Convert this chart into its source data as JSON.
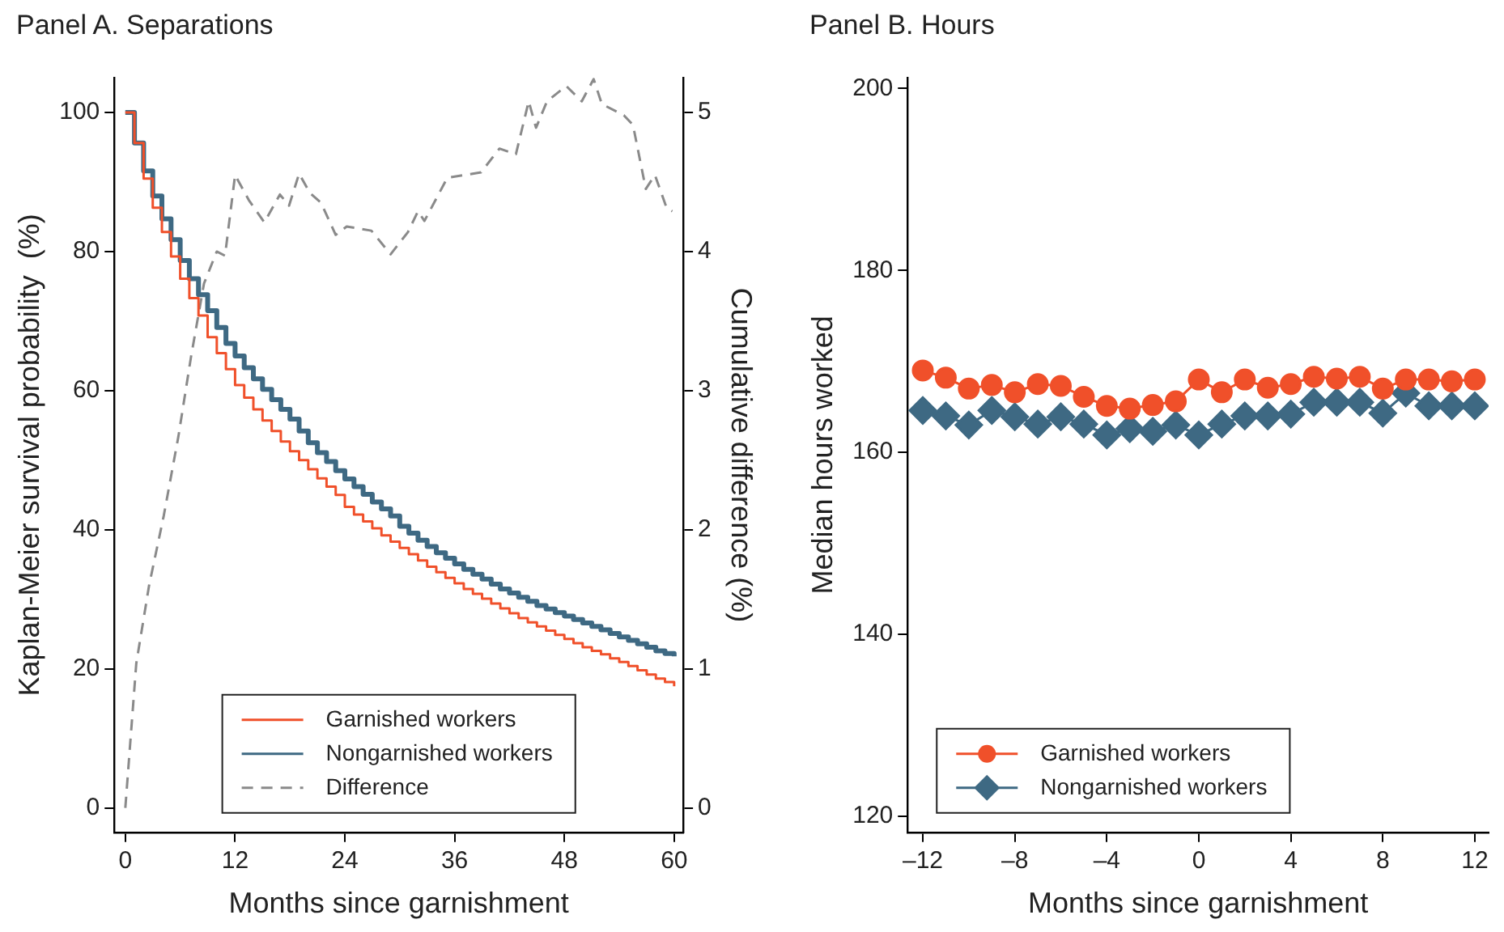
{
  "chart_data": [
    {
      "type": "step",
      "title": "Panel A. Separations",
      "xlabel": "Months since garnishment",
      "ylabel": "Kaplan-Meier survival probability  (%)",
      "y2label": "Cumulative difference (%)",
      "x": [
        0,
        1,
        2,
        3,
        4,
        5,
        6,
        7,
        8,
        9,
        10,
        11,
        12,
        13,
        14,
        15,
        16,
        17,
        18,
        19,
        20,
        21,
        22,
        23,
        24,
        25,
        26,
        27,
        28,
        29,
        30,
        31,
        32,
        33,
        34,
        35,
        36,
        37,
        38,
        39,
        40,
        41,
        42,
        43,
        44,
        45,
        46,
        47,
        48,
        49,
        50,
        51,
        52,
        53,
        54,
        55,
        56,
        57,
        58,
        59,
        60
      ],
      "xlim": [
        -1.2,
        61
      ],
      "xticks": [
        0,
        12,
        24,
        36,
        48,
        60
      ],
      "ylim": [
        -3.5,
        105
      ],
      "yticks": [
        0,
        20,
        40,
        60,
        80,
        100
      ],
      "y2lim": [
        -0.175,
        5.25
      ],
      "y2ticks": [
        0,
        1,
        2,
        3,
        4,
        5
      ],
      "legend": "bottom",
      "series": [
        {
          "name": "Garnished workers",
          "color": "#f0502a",
          "values": [
            100,
            95.6,
            90.5,
            86.3,
            82.8,
            79.3,
            76.1,
            73.3,
            70.8,
            67.7,
            65.4,
            63.1,
            60.8,
            59,
            57.3,
            55.7,
            54.2,
            52.7,
            51.3,
            50,
            48.7,
            47.4,
            46.2,
            45,
            43.3,
            42.2,
            41.2,
            40.2,
            39.2,
            38.3,
            37.4,
            36.5,
            35.6,
            34.7,
            33.9,
            33.1,
            32.3,
            31.5,
            30.8,
            30.1,
            29.4,
            28.7,
            28,
            27.3,
            26.7,
            26.1,
            25.5,
            24.9,
            24.3,
            23.7,
            23.1,
            22.6,
            22.1,
            21.5,
            21,
            20.4,
            19.8,
            19.2,
            18.6,
            18.1,
            17.5
          ]
        },
        {
          "name": "Nongarnished workers",
          "color": "#3e6983",
          "values": [
            100,
            95.6,
            91.6,
            88,
            84.7,
            81.7,
            78.7,
            76.1,
            73.8,
            71.5,
            69.1,
            66.8,
            65,
            63.3,
            61.7,
            60.2,
            58.7,
            57.3,
            55.9,
            54.2,
            52.5,
            51.1,
            49.8,
            48.5,
            47.3,
            46.2,
            45.1,
            44,
            43,
            42,
            40.5,
            39.5,
            38.5,
            37.6,
            36.7,
            35.9,
            35.1,
            34.3,
            33.6,
            32.9,
            32.2,
            31.5,
            30.9,
            30.3,
            29.7,
            29.1,
            28.6,
            28.1,
            27.6,
            27.1,
            26.6,
            26.1,
            25.6,
            25.1,
            24.6,
            24.1,
            23.6,
            23.1,
            22.6,
            22.2,
            21.8
          ]
        },
        {
          "name": "Difference",
          "type": "line",
          "axis": "y2",
          "line_style": "dashed",
          "color": "#8a8a8a",
          "x": [
            0,
            1.2,
            2.6,
            4.2,
            5.8,
            7.2,
            8.6,
            10,
            10.9,
            12,
            13.5,
            15.2,
            16.9,
            17.9,
            19,
            20.2,
            21.4,
            23,
            24.2,
            26.9,
            29,
            30.9,
            32,
            32.7,
            35.2,
            38.9,
            40.9,
            42.7,
            44.1,
            44.9,
            46.1,
            48.2,
            49.9,
            51.2,
            52.1,
            54.5,
            55.5,
            56.9,
            57.9,
            59.2,
            59.8
          ],
          "values": [
            0,
            1.04,
            1.6,
            2.1,
            2.67,
            3.25,
            3.77,
            4,
            3.97,
            4.55,
            4.37,
            4.21,
            4.41,
            4.33,
            4.56,
            4.42,
            4.35,
            4.12,
            4.18,
            4.15,
            3.98,
            4.14,
            4.29,
            4.22,
            4.53,
            4.57,
            4.74,
            4.7,
            5.08,
            4.89,
            5.08,
            5.19,
            5.08,
            5.24,
            5.06,
            4.98,
            4.91,
            4.45,
            4.55,
            4.31,
            4.29
          ]
        }
      ]
    },
    {
      "type": "line",
      "title": "Panel B. Hours",
      "xlabel": "Months since garnishment",
      "ylabel": "Median hours worked",
      "x": [
        -12,
        -11,
        -10,
        -9,
        -8,
        -7,
        -6,
        -5,
        -4,
        -3,
        -2,
        -1,
        0,
        1,
        2,
        3,
        4,
        5,
        6,
        7,
        8,
        9,
        10,
        11,
        12
      ],
      "xlim": [
        -12.66,
        12.6
      ],
      "xticks": [
        {
          "value": -12,
          "label": "–12"
        },
        {
          "value": -8,
          "label": "–8"
        },
        {
          "value": -4,
          "label": "–4"
        },
        0,
        4,
        8,
        12
      ],
      "ylim": [
        118.2,
        201.2
      ],
      "yticks": [
        120,
        140,
        160,
        180,
        200
      ],
      "legend": "bottom left",
      "series": [
        {
          "name": "Garnished workers",
          "color": "#f0502a",
          "marker": "circle",
          "values": [
            169,
            168.2,
            167,
            167.4,
            166.6,
            167.5,
            167.3,
            166.1,
            165.1,
            164.8,
            165.2,
            165.6,
            168,
            166.6,
            168,
            167.1,
            167.5,
            168.3,
            168.1,
            168.3,
            167,
            168,
            168,
            167.8,
            168
          ]
        },
        {
          "name": "Nongarnished workers",
          "color": "#3e6983",
          "marker": "diamond",
          "values": [
            164.6,
            164,
            163,
            164.6,
            163.9,
            163.1,
            163.9,
            163.1,
            161.9,
            162.6,
            162.3,
            163,
            161.9,
            163.1,
            164,
            164,
            164.2,
            165.5,
            165.5,
            165.5,
            164.3,
            166.5,
            165.1,
            165.1,
            165.1
          ]
        }
      ]
    }
  ]
}
